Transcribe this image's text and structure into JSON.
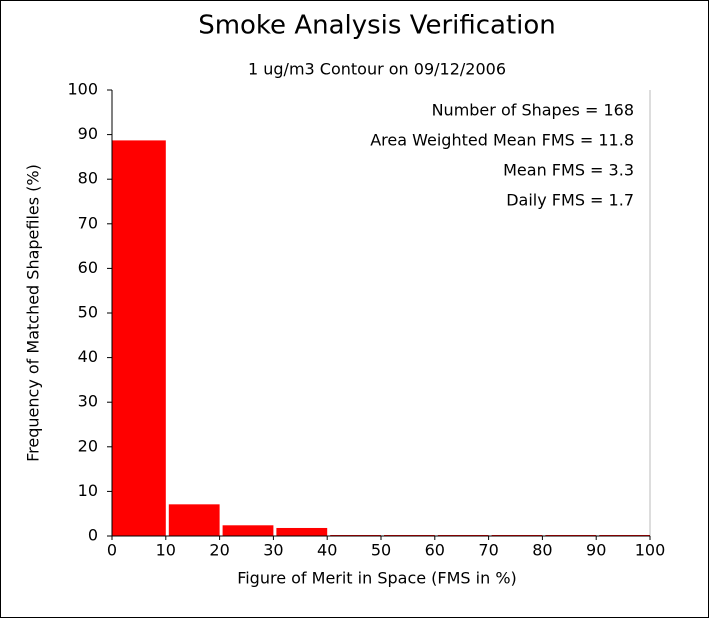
{
  "chart_data": {
    "type": "histogram",
    "title": "Smoke Analysis Verification",
    "subtitle": "1 ug/m3 Contour on 09/12/2006",
    "x_label": "Figure of Merit in Space (FMS in %)",
    "y_label": "Frequency of Matched Shapefiles (%)",
    "annotations": [
      "Number of Shapes = 168",
      "Area Weighted Mean FMS = 11.8",
      "Mean FMS = 3.3",
      "Daily FMS = 1.7"
    ],
    "bins": [
      0,
      10,
      20,
      30,
      40,
      50,
      60,
      70,
      80,
      90,
      100
    ],
    "values": [
      88.7,
      7.1,
      2.4,
      1.8,
      0,
      0,
      0,
      0,
      0,
      0
    ],
    "color": "#ff0000",
    "xlim": [
      0,
      100
    ],
    "xticks": [
      0,
      10,
      20,
      30,
      40,
      50,
      60,
      70,
      80,
      90,
      100
    ],
    "ylim": [
      0,
      100
    ],
    "yticks": [
      0,
      10,
      20,
      30,
      40,
      50,
      60,
      70,
      80,
      90,
      100
    ]
  }
}
